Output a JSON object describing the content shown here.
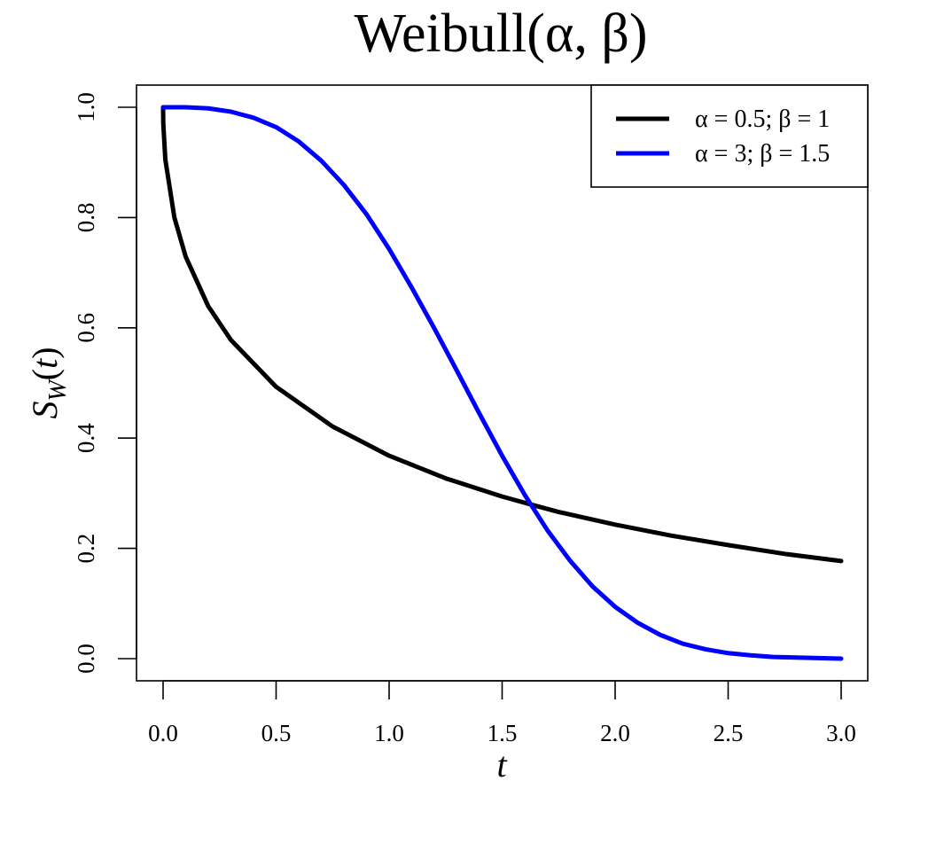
{
  "chart_data": {
    "type": "line",
    "title": "Weibull(α, β)",
    "xlabel": "t",
    "ylabel": "S_W(t)",
    "ylabel_main": "S",
    "ylabel_sub": "W",
    "ylabel_paren_open": "(",
    "ylabel_arg": "t",
    "ylabel_paren_close": ")",
    "xlim": [
      0,
      3
    ],
    "ylim": [
      0,
      1
    ],
    "x_ticks": [
      "0.0",
      "0.5",
      "1.0",
      "1.5",
      "2.0",
      "2.5",
      "3.0"
    ],
    "y_ticks": [
      "0.0",
      "0.2",
      "0.4",
      "0.6",
      "0.8",
      "1.0"
    ],
    "grid": false,
    "legend_position": "top-right",
    "series": [
      {
        "name": "α = 0.5; β = 1",
        "color": "#000000",
        "x": [
          0.0,
          0.001,
          0.01,
          0.05,
          0.1,
          0.2,
          0.3,
          0.5,
          0.75,
          1.0,
          1.25,
          1.5,
          1.65,
          1.75,
          2.0,
          2.25,
          2.5,
          2.75,
          3.0
        ],
        "y": [
          1.0,
          0.969,
          0.905,
          0.8,
          0.729,
          0.639,
          0.578,
          0.493,
          0.421,
          0.368,
          0.327,
          0.294,
          0.277,
          0.266,
          0.243,
          0.223,
          0.206,
          0.19,
          0.177
        ]
      },
      {
        "name": "α = 3; β = 1.5",
        "color": "#0000ff",
        "x": [
          0.0,
          0.1,
          0.2,
          0.3,
          0.4,
          0.5,
          0.6,
          0.7,
          0.8,
          0.9,
          1.0,
          1.1,
          1.2,
          1.3,
          1.4,
          1.5,
          1.6,
          1.7,
          1.8,
          1.9,
          2.0,
          2.1,
          2.2,
          2.3,
          2.4,
          2.5,
          2.6,
          2.7,
          2.8,
          2.9,
          3.0
        ],
        "y": [
          1.0,
          1.0,
          0.998,
          0.992,
          0.981,
          0.964,
          0.938,
          0.903,
          0.859,
          0.806,
          0.743,
          0.673,
          0.599,
          0.522,
          0.444,
          0.368,
          0.297,
          0.233,
          0.178,
          0.131,
          0.094,
          0.065,
          0.043,
          0.027,
          0.017,
          0.01,
          0.006,
          0.003,
          0.002,
          0.001,
          0.0
        ]
      }
    ]
  }
}
